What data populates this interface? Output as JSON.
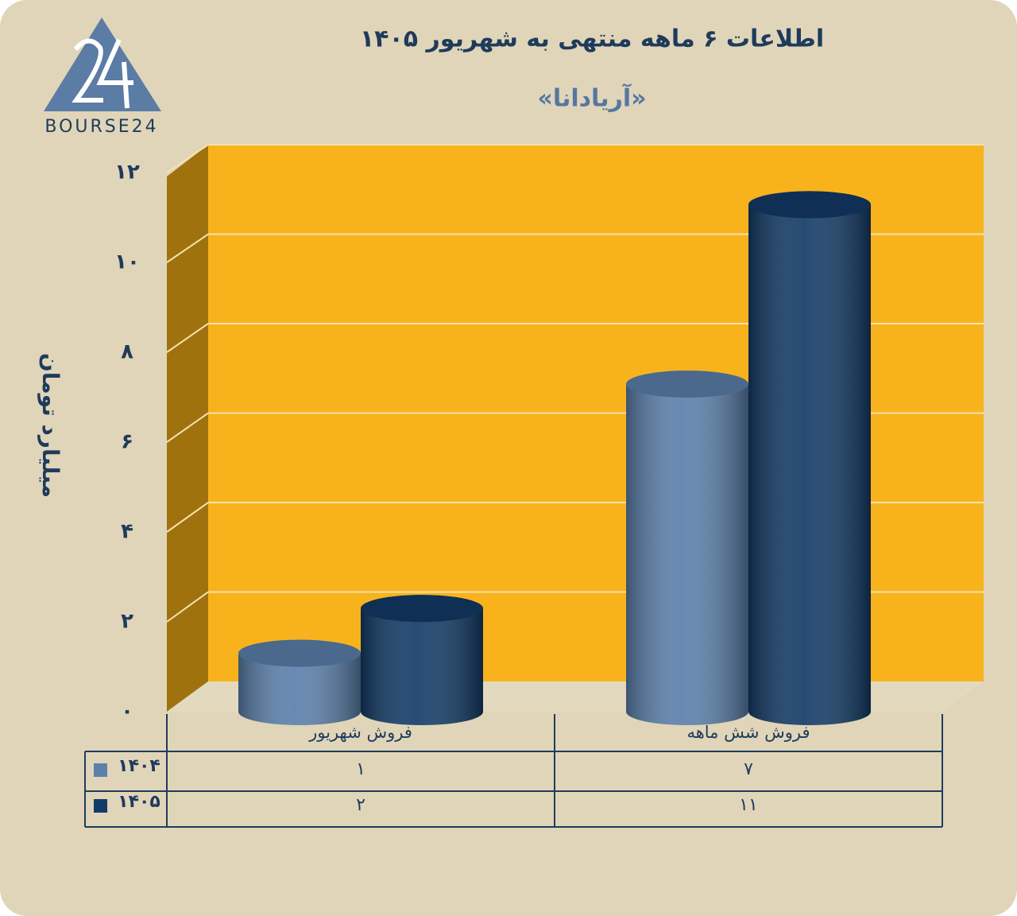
{
  "logo": "BOURSE24",
  "chart_data": {
    "type": "bar",
    "title": "اطلاعات ۶ ماهه منتهی به شهریور ۱۴۰۵",
    "subtitle": "«آریادانا»",
    "y_label": "میلیارد تومان",
    "categories": [
      "فروش شهریور",
      "فروش شش ماهه"
    ],
    "series": [
      {
        "name": "۱۴۰۴",
        "color": "#5b80ab",
        "values": [
          1,
          7
        ],
        "value_labels": [
          "۱",
          "۷"
        ]
      },
      {
        "name": "۱۴۰۵",
        "color": "#133b67",
        "values": [
          2,
          11
        ],
        "value_labels": [
          "۲",
          "۱۱"
        ]
      }
    ],
    "ylim": [
      0,
      12
    ],
    "yticks": [
      {
        "value": 0,
        "label": "۰"
      },
      {
        "value": 2,
        "label": "۲"
      },
      {
        "value": 4,
        "label": "۴"
      },
      {
        "value": 6,
        "label": "۶"
      },
      {
        "value": 8,
        "label": "۸"
      },
      {
        "value": 10,
        "label": "۱۰"
      },
      {
        "value": 12,
        "label": "۱۲"
      }
    ],
    "grid": true
  }
}
